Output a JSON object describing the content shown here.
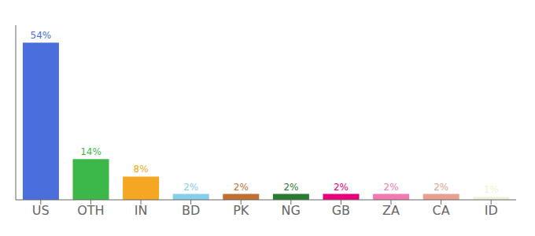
{
  "chart_data": {
    "type": "bar",
    "categories": [
      "US",
      "OTH",
      "IN",
      "BD",
      "PK",
      "NG",
      "GB",
      "ZA",
      "CA",
      "ID"
    ],
    "values": [
      54,
      14,
      8,
      2,
      2,
      2,
      2,
      2,
      2,
      1
    ],
    "value_labels": [
      "54%",
      "14%",
      "8%",
      "2%",
      "2%",
      "2%",
      "2%",
      "2%",
      "2%",
      "1%"
    ],
    "colors": [
      "#4a6edb",
      "#3cb84a",
      "#f5a623",
      "#87ceeb",
      "#c07030",
      "#2a7a30",
      "#e8007a",
      "#f07ab0",
      "#e8a090",
      "#f0f0d8"
    ],
    "ylim": [
      0,
      60
    ],
    "yticks": [],
    "grid": false,
    "data_labels": true,
    "tick_labels": "x"
  }
}
